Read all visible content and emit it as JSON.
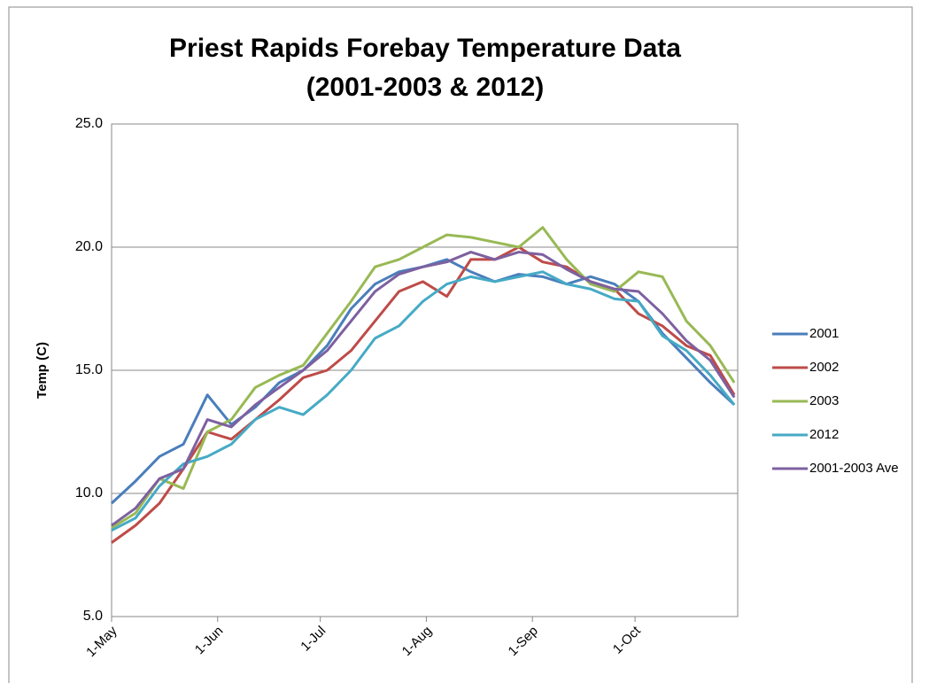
{
  "chart_data": {
    "type": "line",
    "title": "Priest Rapids Forebay Temperature Data",
    "subtitle": "(2001-2003 & 2012)",
    "y_label": "Temp (C)",
    "x": [
      0,
      7,
      14,
      21,
      28,
      35,
      42,
      49,
      56,
      63,
      70,
      77,
      84,
      91,
      98,
      105,
      112,
      119,
      126,
      133,
      140,
      147,
      154,
      161,
      168,
      175,
      182
    ],
    "xlim": [
      0,
      183
    ],
    "xticks": [
      {
        "value": 0,
        "label": "1-May"
      },
      {
        "value": 31,
        "label": "1-Jun"
      },
      {
        "value": 61,
        "label": "1-Jul"
      },
      {
        "value": 92,
        "label": "1-Aug"
      },
      {
        "value": 123,
        "label": "1-Sep"
      },
      {
        "value": 153,
        "label": "1-Oct"
      }
    ],
    "ylim": [
      5,
      25
    ],
    "yticks": [
      {
        "value": 5,
        "label": "5.0"
      },
      {
        "value": 10,
        "label": "10.0"
      },
      {
        "value": 15,
        "label": "15.0"
      },
      {
        "value": 20,
        "label": "20.0"
      },
      {
        "value": 25,
        "label": "25.0"
      }
    ],
    "grid": true,
    "legend": "right",
    "series": [
      {
        "name": "2001",
        "color": "#4a7ebb",
        "values": [
          9.6,
          10.5,
          11.5,
          12.0,
          14.0,
          12.8,
          13.5,
          14.5,
          15.0,
          16.0,
          17.5,
          18.5,
          19.0,
          19.2,
          19.5,
          19.0,
          18.6,
          18.9,
          18.8,
          18.5,
          18.8,
          18.5,
          17.8,
          16.5,
          15.5,
          14.5,
          13.6
        ]
      },
      {
        "name": "2002",
        "color": "#be4b48",
        "values": [
          8.0,
          8.7,
          9.6,
          11.0,
          12.5,
          12.2,
          13.0,
          13.8,
          14.7,
          15.0,
          15.8,
          17.0,
          18.2,
          18.6,
          18.0,
          19.5,
          19.5,
          20.0,
          19.4,
          19.2,
          18.6,
          18.3,
          17.3,
          16.8,
          16.0,
          15.6,
          14.0
        ]
      },
      {
        "name": "2003",
        "color": "#98b954",
        "values": [
          8.6,
          9.2,
          10.6,
          10.2,
          12.5,
          13.0,
          14.3,
          14.8,
          15.2,
          16.5,
          17.8,
          19.2,
          19.5,
          20.0,
          20.5,
          20.4,
          20.2,
          20.0,
          20.8,
          19.5,
          18.5,
          18.2,
          19.0,
          18.8,
          17.0,
          16.0,
          14.5
        ]
      },
      {
        "name": "2012",
        "color": "#46aac5",
        "values": [
          8.5,
          9.0,
          10.3,
          11.2,
          11.5,
          12.0,
          13.0,
          13.5,
          13.2,
          14.0,
          15.0,
          16.3,
          16.8,
          17.8,
          18.5,
          18.8,
          18.6,
          18.8,
          19.0,
          18.5,
          18.3,
          17.9,
          17.8,
          16.4,
          15.8,
          14.8,
          13.6
        ]
      },
      {
        "name": "2001-2003 Ave",
        "color": "#7d60a0",
        "values": [
          8.7,
          9.4,
          10.6,
          11.0,
          13.0,
          12.7,
          13.6,
          14.3,
          15.0,
          15.8,
          17.0,
          18.2,
          18.9,
          19.2,
          19.4,
          19.8,
          19.5,
          19.8,
          19.7,
          19.1,
          18.6,
          18.3,
          18.2,
          17.3,
          16.2,
          15.4,
          13.9
        ]
      }
    ]
  }
}
